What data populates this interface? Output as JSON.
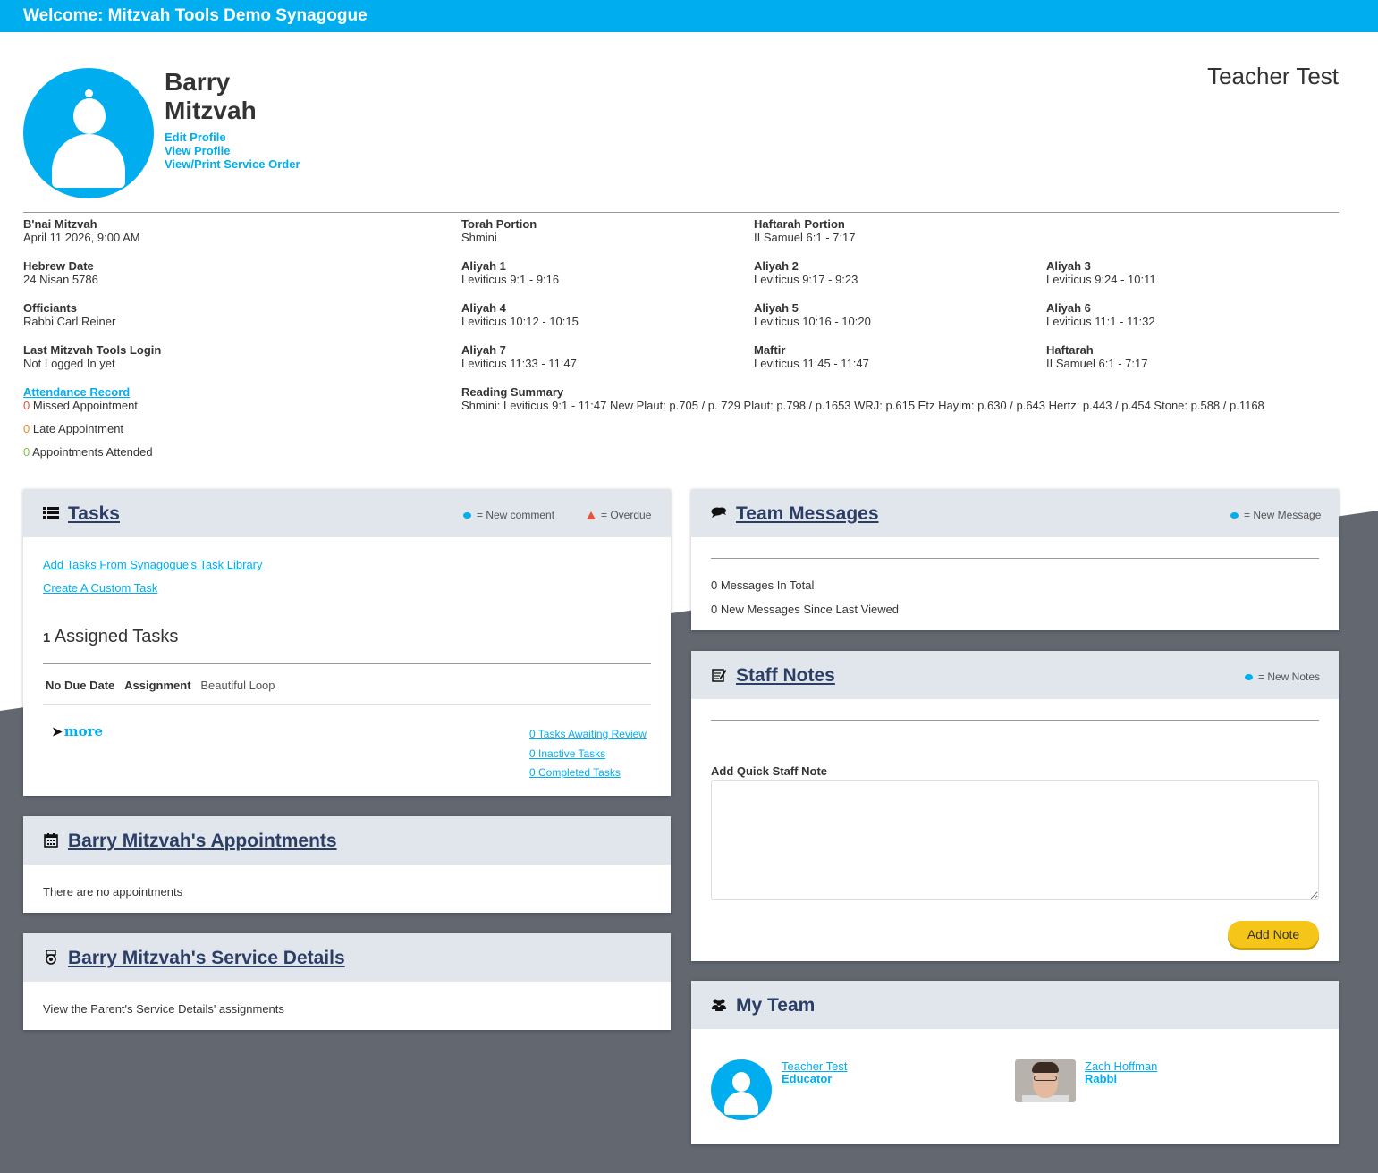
{
  "topbar": {
    "welcome": "Welcome: Mitzvah Tools Demo Synagogue"
  },
  "profile": {
    "first_name": "Barry",
    "last_name": "Mitzvah",
    "links": {
      "edit": "Edit Profile",
      "view": "View Profile",
      "service_order": "View/Print Service Order"
    },
    "teacher": "Teacher Test"
  },
  "info": {
    "bnai": {
      "label": "B'nai Mitzvah",
      "value": "April 11 2026, 9:00 AM"
    },
    "hebrew": {
      "label": "Hebrew Date",
      "value": "24 Nisan 5786"
    },
    "officiants": {
      "label": "Officiants",
      "value": "Rabbi Carl Reiner"
    },
    "login": {
      "label": "Last Mitzvah Tools Login",
      "value": "Not Logged In yet"
    },
    "attendance": {
      "label": "Attendance Record",
      "missed_count": "0",
      "missed_label": "Missed Appointment",
      "late_count": "0",
      "late_label": "Late Appointment",
      "attended_count": "0",
      "attended_label": "Appointments Attended"
    },
    "torah": {
      "label": "Torah Portion",
      "value": "Shmini"
    },
    "haftarah_portion": {
      "label": "Haftarah Portion",
      "value": "II Samuel 6:1 - 7:17"
    },
    "aliyot": [
      {
        "label": "Aliyah 1",
        "value": "Leviticus 9:1 - 9:16"
      },
      {
        "label": "Aliyah 2",
        "value": "Leviticus 9:17 - 9:23"
      },
      {
        "label": "Aliyah 3",
        "value": "Leviticus 9:24 - 10:11"
      },
      {
        "label": "Aliyah 4",
        "value": "Leviticus 10:12 - 10:15"
      },
      {
        "label": "Aliyah 5",
        "value": "Leviticus 10:16 - 10:20"
      },
      {
        "label": "Aliyah 6",
        "value": "Leviticus 11:1 - 11:32"
      },
      {
        "label": "Aliyah 7",
        "value": "Leviticus 11:33 - 11:47"
      },
      {
        "label": "Maftir",
        "value": "Leviticus 11:45 - 11:47"
      },
      {
        "label": "Haftarah",
        "value": "II Samuel 6:1 - 7:17"
      }
    ],
    "summary": {
      "label": "Reading Summary",
      "value": "Shmini: Leviticus 9:1 - 11:47 New Plaut: p.705 / p. 729 Plaut: p.798 / p.1653 WRJ: p.615 Etz Hayim: p.630 / p.643 Hertz: p.443 / p.454 Stone: p.588 / p.1168"
    }
  },
  "tasks": {
    "title": "Tasks",
    "legend_comment": "= New comment",
    "legend_overdue": "= Overdue",
    "add_library": "Add Tasks From Synagogue's Task Library",
    "create_custom": "Create A Custom Task",
    "assigned_count": "1",
    "assigned_label": "Assigned Tasks",
    "rows": [
      {
        "due": "No Due Date",
        "type": "Assignment",
        "name": "Beautiful Loop"
      }
    ],
    "more": "more",
    "awaiting": "0 Tasks Awaiting Review",
    "inactive": "0 Inactive Tasks",
    "completed": "0 Completed Tasks"
  },
  "appointments": {
    "title": "Barry Mitzvah's Appointments",
    "empty": "There are no appointments"
  },
  "service": {
    "title": "Barry Mitzvah's Service Details",
    "text": "View the Parent's Service Details' assignments"
  },
  "messages": {
    "title": "Team Messages",
    "legend": "= New Message",
    "total": "0 Messages In Total",
    "new_since": "0 New Messages Since Last Viewed"
  },
  "staff_notes": {
    "title": "Staff Notes",
    "legend": "= New Notes",
    "quick_label": "Add Quick Staff Note",
    "button": "Add Note"
  },
  "team": {
    "title": "My Team",
    "members": [
      {
        "name": "Teacher Test",
        "role": "Educator"
      },
      {
        "name": "Zach Hoffman",
        "role": "Rabbi"
      }
    ]
  },
  "colors": {
    "accent": "#00aeef",
    "panel_head": "#e1e5ec",
    "title": "#2c3e66",
    "backdrop": "#626770",
    "button": "#f5c518"
  },
  "icons": [
    "list-icon",
    "chat-icon",
    "edit-note-icon",
    "calendar-icon",
    "badge-icon",
    "team-icon"
  ]
}
